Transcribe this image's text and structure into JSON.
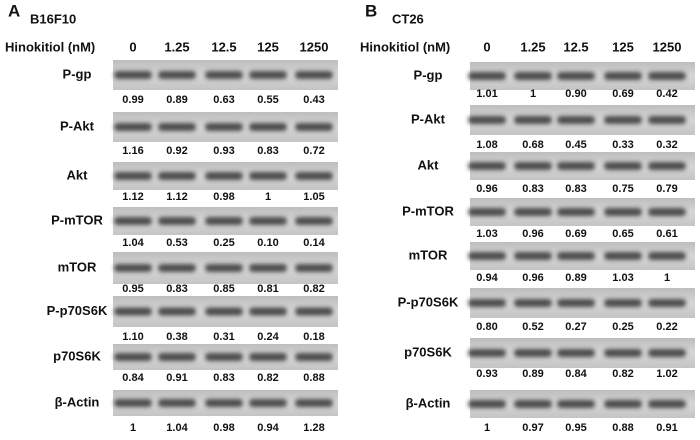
{
  "panels": [
    {
      "label": "A",
      "cell_line": "B16F10",
      "treatment_label": "Hinokitiol (nM)",
      "doses": [
        "0",
        "1.25",
        "12.5",
        "125",
        "1250"
      ],
      "rows": [
        {
          "protein": "P-gp",
          "values": [
            "0.99",
            "0.89",
            "0.63",
            "0.55",
            "0.43"
          ]
        },
        {
          "protein": "P-Akt",
          "values": [
            "1.16",
            "0.92",
            "0.93",
            "0.83",
            "0.72"
          ]
        },
        {
          "protein": "Akt",
          "values": [
            "1.12",
            "1.12",
            "0.98",
            "1",
            "1.05"
          ]
        },
        {
          "protein": "P-mTOR",
          "values": [
            "1.04",
            "0.53",
            "0.25",
            "0.10",
            "0.14"
          ]
        },
        {
          "protein": "mTOR",
          "values": [
            "0.95",
            "0.83",
            "0.85",
            "0.81",
            "0.82"
          ]
        },
        {
          "protein": "P-p70S6K",
          "values": [
            "1.10",
            "0.38",
            "0.31",
            "0.24",
            "0.18"
          ]
        },
        {
          "protein": "p70S6K",
          "values": [
            "0.84",
            "0.91",
            "0.83",
            "0.82",
            "0.88"
          ]
        },
        {
          "protein": "β-Actin",
          "values": [
            "1",
            "1.04",
            "0.98",
            "0.94",
            "1.28"
          ]
        }
      ]
    },
    {
      "label": "B",
      "cell_line": "CT26",
      "treatment_label": "Hinokitiol (nM)",
      "doses": [
        "0",
        "1.25",
        "12.5",
        "125",
        "1250"
      ],
      "rows": [
        {
          "protein": "P-gp",
          "values": [
            "1.01",
            "1",
            "0.90",
            "0.69",
            "0.42"
          ]
        },
        {
          "protein": "P-Akt",
          "values": [
            "1.08",
            "0.68",
            "0.45",
            "0.33",
            "0.32"
          ]
        },
        {
          "protein": "Akt",
          "values": [
            "0.96",
            "0.83",
            "0.83",
            "0.75",
            "0.79"
          ]
        },
        {
          "protein": "P-mTOR",
          "values": [
            "1.03",
            "0.96",
            "0.69",
            "0.65",
            "0.61"
          ]
        },
        {
          "protein": "mTOR",
          "values": [
            "0.94",
            "0.96",
            "0.89",
            "1.03",
            "1"
          ]
        },
        {
          "protein": "P-p70S6K",
          "values": [
            "0.80",
            "0.52",
            "0.27",
            "0.25",
            "0.22"
          ]
        },
        {
          "protein": "p70S6K",
          "values": [
            "0.93",
            "0.89",
            "0.84",
            "0.82",
            "1.02"
          ]
        },
        {
          "protein": "β-Actin",
          "values": [
            "1",
            "0.97",
            "0.95",
            "0.88",
            "0.91"
          ]
        }
      ]
    }
  ]
}
